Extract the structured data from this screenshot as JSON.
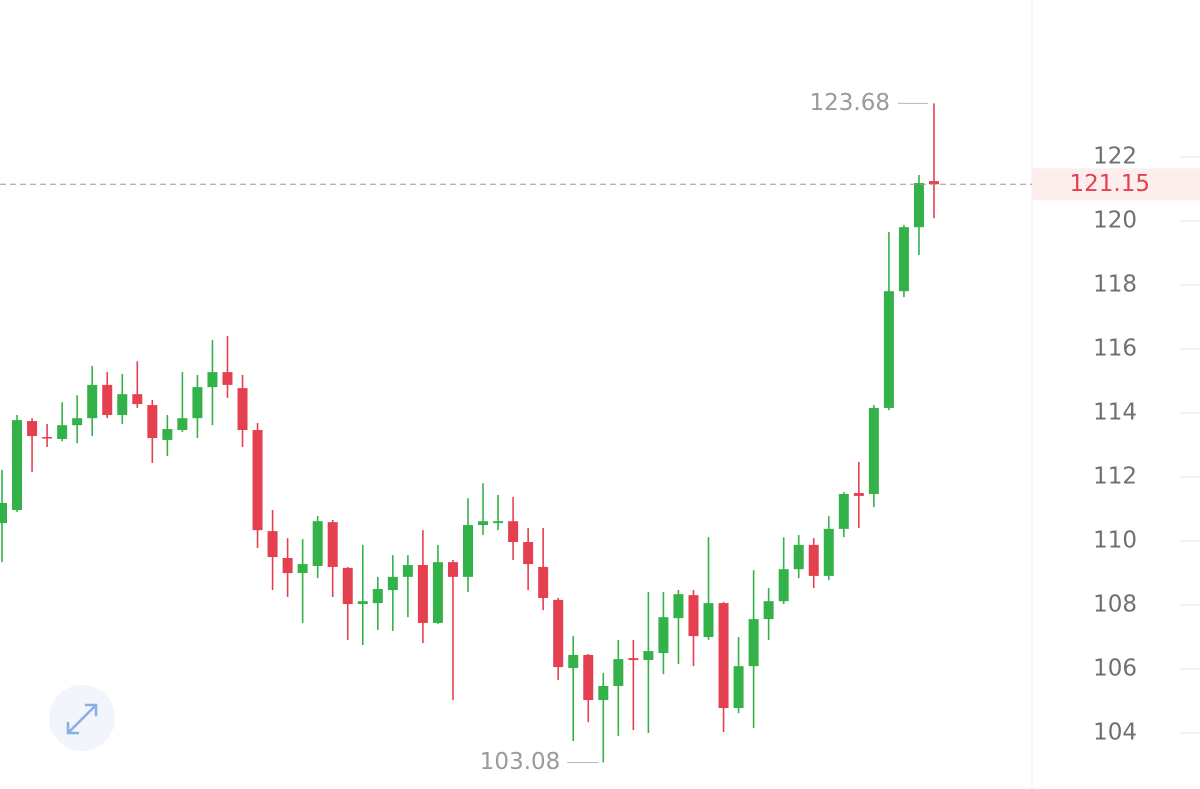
{
  "chart_data": {
    "type": "candlestick",
    "open": [
      110.56,
      110.97,
      113.75,
      113.25,
      113.19,
      113.62,
      113.84,
      114.88,
      113.94,
      114.59,
      114.25,
      113.16,
      113.47,
      113.84,
      114.81,
      115.28,
      114.78,
      113.47,
      110.31,
      109.47,
      109.0,
      109.22,
      110.59,
      109.16,
      108.03,
      108.06,
      108.47,
      108.88,
      109.25,
      107.44,
      109.34,
      108.88,
      110.5,
      110.56,
      110.62,
      109.97,
      109.19,
      108.16,
      106.03,
      106.44,
      105.03,
      105.47,
      106.34,
      106.28,
      106.5,
      107.59,
      108.31,
      107.0,
      108.06,
      104.78,
      106.09,
      107.56,
      108.12,
      109.12,
      109.88,
      108.91,
      110.38,
      111.5,
      111.47,
      114.16,
      117.81,
      119.81,
      121.25
    ],
    "high": [
      112.22,
      113.94,
      113.84,
      113.66,
      114.34,
      114.56,
      115.47,
      115.28,
      115.22,
      115.62,
      114.41,
      113.94,
      115.28,
      115.19,
      116.28,
      116.41,
      115.19,
      113.69,
      110.97,
      110.09,
      110.06,
      110.78,
      110.66,
      109.19,
      109.88,
      108.88,
      109.56,
      109.56,
      110.34,
      109.88,
      109.41,
      111.34,
      111.81,
      111.44,
      111.38,
      110.41,
      110.41,
      108.22,
      107.03,
      106.47,
      105.88,
      106.91,
      106.91,
      108.41,
      108.41,
      108.47,
      108.47,
      110.12,
      108.09,
      107.0,
      109.09,
      108.53,
      110.12,
      110.19,
      110.09,
      110.78,
      111.53,
      112.47,
      114.25,
      119.66,
      119.88,
      121.44,
      123.68
    ],
    "low": [
      109.34,
      110.91,
      112.16,
      112.94,
      113.12,
      113.06,
      113.28,
      113.84,
      113.66,
      114.16,
      112.44,
      112.66,
      113.41,
      113.22,
      113.62,
      114.47,
      112.94,
      109.78,
      108.47,
      108.25,
      107.44,
      108.84,
      108.25,
      106.91,
      106.75,
      107.22,
      107.19,
      107.62,
      106.81,
      107.41,
      105.03,
      108.41,
      110.19,
      110.34,
      109.41,
      108.47,
      107.84,
      105.66,
      103.75,
      104.34,
      103.08,
      103.91,
      104.09,
      104.0,
      105.84,
      106.16,
      106.09,
      106.91,
      104.03,
      104.62,
      104.16,
      106.91,
      108.03,
      108.84,
      108.53,
      108.78,
      110.12,
      110.41,
      111.06,
      114.09,
      117.62,
      118.94,
      120.09
    ],
    "close": [
      111.19,
      113.78,
      113.28,
      113.22,
      113.62,
      113.84,
      114.88,
      113.94,
      114.59,
      114.28,
      113.22,
      113.5,
      113.84,
      114.81,
      115.28,
      114.88,
      113.47,
      110.34,
      109.5,
      109.0,
      109.28,
      110.62,
      109.19,
      108.03,
      108.12,
      108.5,
      108.88,
      109.25,
      107.44,
      109.34,
      108.88,
      110.5,
      110.62,
      110.62,
      109.97,
      109.28,
      108.22,
      106.06,
      106.44,
      105.03,
      105.47,
      106.31,
      106.28,
      106.56,
      107.62,
      108.34,
      107.03,
      108.06,
      104.78,
      106.09,
      107.56,
      108.12,
      109.12,
      109.88,
      108.91,
      110.38,
      111.47,
      111.41,
      114.16,
      117.81,
      119.81,
      121.19,
      121.15
    ],
    "up_color": "#34b24a",
    "down_color": "#e5404f",
    "ylim": [
      102.25,
      126.91
    ],
    "yticks": [
      104,
      106,
      108,
      110,
      112,
      114,
      116,
      118,
      120,
      122
    ]
  }
}
